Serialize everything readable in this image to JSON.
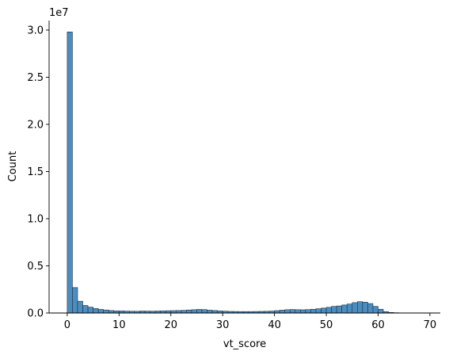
{
  "chart_data": {
    "type": "bar",
    "title": "",
    "xlabel": "vt_score",
    "ylabel": "Count",
    "y_offset_label": "1e7",
    "xlim": [
      -3.5,
      72
    ],
    "ylim": [
      0,
      31000000
    ],
    "xticks": [
      0,
      10,
      20,
      30,
      40,
      50,
      60,
      70
    ],
    "xtick_labels": [
      "0",
      "10",
      "20",
      "30",
      "40",
      "50",
      "60",
      "70"
    ],
    "yticks": [
      0,
      5000000,
      10000000,
      15000000,
      20000000,
      25000000,
      30000000
    ],
    "ytick_labels": [
      "0.0",
      "0.5",
      "1.0",
      "1.5",
      "2.0",
      "2.5",
      "3.0"
    ],
    "bin_edges_start": 0,
    "bin_width": 1,
    "values": [
      29800000,
      2700000,
      1250000,
      800000,
      620000,
      480000,
      380000,
      320000,
      260000,
      230000,
      220000,
      200000,
      190000,
      180000,
      210000,
      200000,
      190000,
      210000,
      220000,
      240000,
      250000,
      260000,
      280000,
      320000,
      350000,
      380000,
      360000,
      300000,
      260000,
      220000,
      190000,
      170000,
      160000,
      150000,
      150000,
      150000,
      160000,
      170000,
      180000,
      200000,
      250000,
      300000,
      350000,
      370000,
      350000,
      340000,
      360000,
      400000,
      450000,
      520000,
      600000,
      700000,
      750000,
      850000,
      950000,
      1100000,
      1200000,
      1150000,
      1000000,
      700000,
      400000,
      150000,
      60000,
      30000,
      15000,
      10000,
      8000,
      5000,
      3000,
      2000
    ],
    "grid": false,
    "legend": "none",
    "bar_color": "#4c8dbf"
  }
}
